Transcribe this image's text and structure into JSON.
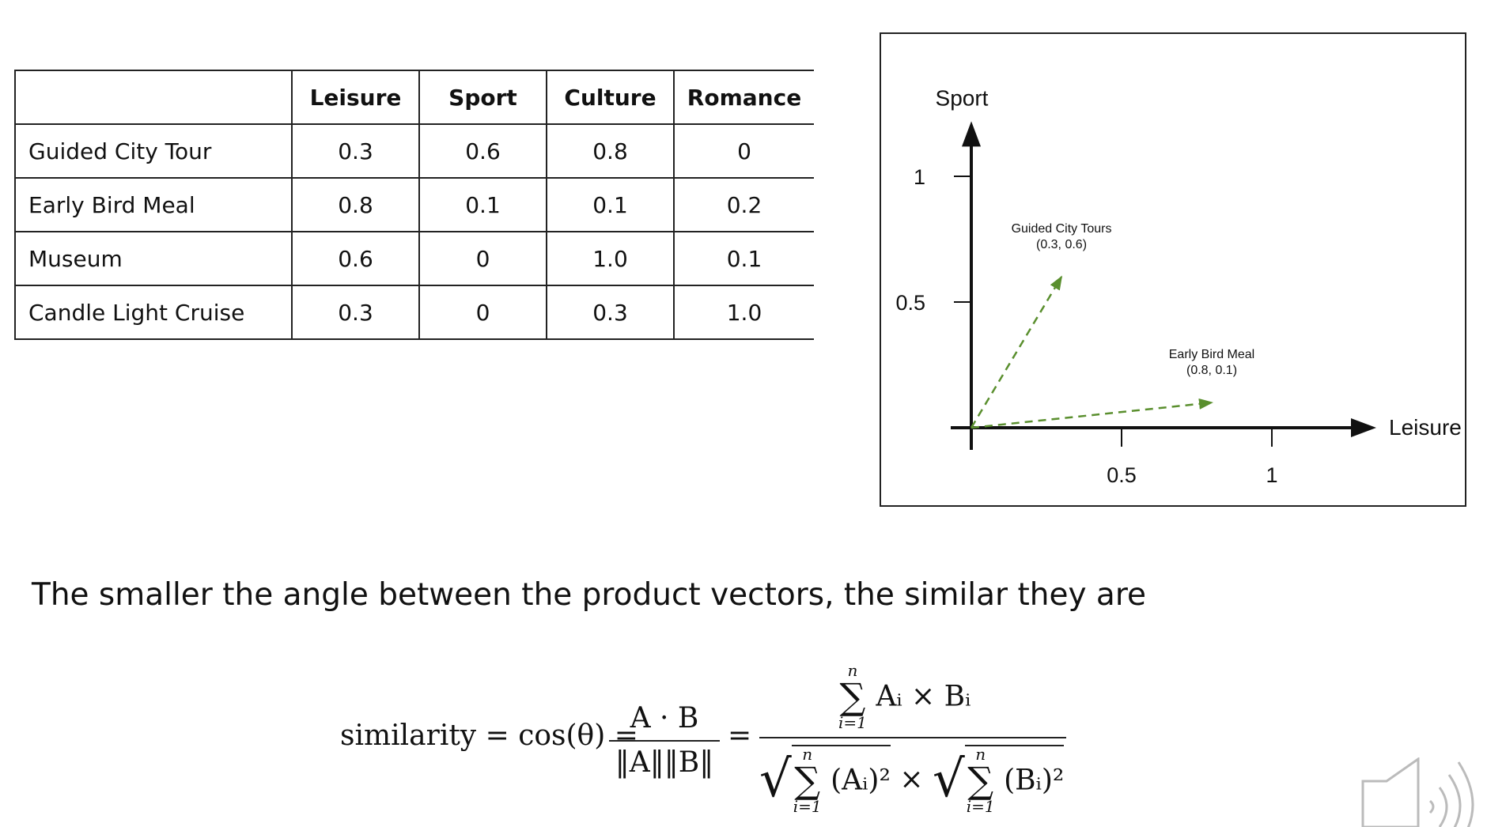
{
  "table": {
    "headers": [
      "",
      "Leisure",
      "Sport",
      "Culture",
      "Romance"
    ],
    "rows": [
      [
        "Guided City Tour",
        "0.3",
        "0.6",
        "0.8",
        "0"
      ],
      [
        "Early Bird Meal",
        "0.8",
        "0.1",
        "0.1",
        "0.2"
      ],
      [
        "Museum",
        "0.6",
        "0",
        "1.0",
        "0.1"
      ],
      [
        "Candle Light Cruise",
        "0.3",
        "0",
        "0.3",
        "1.0"
      ]
    ]
  },
  "chart_data": {
    "type": "scatter",
    "title": "",
    "xlabel": "Leisure",
    "ylabel": "Sport",
    "xlim": [
      0,
      1.3
    ],
    "ylim": [
      0,
      1.2
    ],
    "x_ticks": [
      "0.5",
      "1"
    ],
    "y_ticks": [
      "1",
      "0.5"
    ],
    "vectors": [
      {
        "label": "Guided City Tours",
        "coords": "(0.3, 0.6)",
        "x": 0.3,
        "y": 0.6
      },
      {
        "label": "Early Bird Meal",
        "coords": "(0.8, 0.1)",
        "x": 0.8,
        "y": 0.1
      }
    ],
    "vector_color": "#5a8f2e",
    "grid": false
  },
  "statement": "The smaller the angle between the product vectors, the similar they are",
  "formula": {
    "lhs": "similarity = cos(θ) =",
    "frac1_num": "A · B",
    "frac1_den": "‖A‖‖B‖",
    "eq": "=",
    "sum_upper": "n",
    "sum_lower": "i=1",
    "num_term": "Aᵢ × Bᵢ",
    "den_term_a": "(Aᵢ)²",
    "times": "×",
    "den_term_b": "(Bᵢ)²"
  },
  "icons": {
    "speaker": "speaker-volume-icon"
  }
}
